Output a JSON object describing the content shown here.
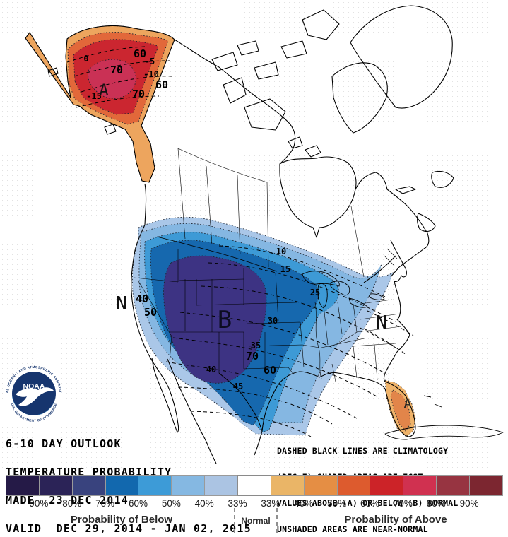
{
  "titles": {
    "line1": "6-10 DAY OUTLOOK",
    "line2": "TEMPERATURE PROBABILITY",
    "line3": "MADE  23 DEC 2014",
    "line4": "VALID  DEC 29, 2014 - JAN 02, 2015"
  },
  "notes": {
    "line1": "DASHED BLACK LINES ARE CLIMATOLOGY",
    "line2": "(DEG F) SHADED AREAS ARE FCST",
    "line3": "VALUES ABOVE (A) OR BELOW (B) NORMAL",
    "line4": "UNSHADED AREAS ARE NEAR-NORMAL"
  },
  "logo": {
    "acronym": "NOAA",
    "ring_top": "NATIONAL OCEANIC AND ATMOSPHERIC ADMINISTRATION",
    "ring_bottom": "U.S. DEPARTMENT OF COMMERCE"
  },
  "map": {
    "letters": {
      "below_center": "B",
      "above_alaska": "A",
      "above_florida": "A",
      "near_normal_west": "N",
      "near_normal_east": "N"
    },
    "contour_labels": [
      "40",
      "50",
      "70",
      "60",
      "60",
      "70",
      "70",
      "60"
    ],
    "climatology_labels": [
      "10",
      "15",
      "25",
      "30",
      "35",
      "40",
      "45",
      "0",
      "-5",
      "-10",
      "-15"
    ],
    "colors": {
      "below_33": "#aac7e8",
      "below_40": "#85b7e2",
      "below_50": "#3d9ad6",
      "below_60": "#1668ae",
      "below_70": "#3d3383",
      "above_outer": "#eda55e",
      "above_mid": "#e2683a",
      "above_60": "#cb2630",
      "above_70": "#ca3155",
      "florida_outer": "#efb36a",
      "florida_inner": "#e2854a",
      "logo_dark": "#16356e",
      "logo_light": "#3f93d0"
    }
  },
  "legend": {
    "colors": [
      "#251a47",
      "#2b2357",
      "#39437e",
      "#1268ae",
      "#3d9bd7",
      "#85b8e2",
      "#abc4e3",
      "#ffffff",
      "#eab567",
      "#e58e44",
      "#dd5b2e",
      "#cc2328",
      "#d03150",
      "#973441",
      "#7c2630"
    ],
    "below_ticks": [
      "90%",
      "80%",
      "70%",
      "60%",
      "50%",
      "40%",
      "33%"
    ],
    "above_ticks": [
      "33%",
      "40%",
      "50%",
      "60%",
      "70%",
      "80%",
      "90%"
    ],
    "below_label": "Probability of Below",
    "above_label": "Probability of Above",
    "normal_label": "Normal"
  }
}
